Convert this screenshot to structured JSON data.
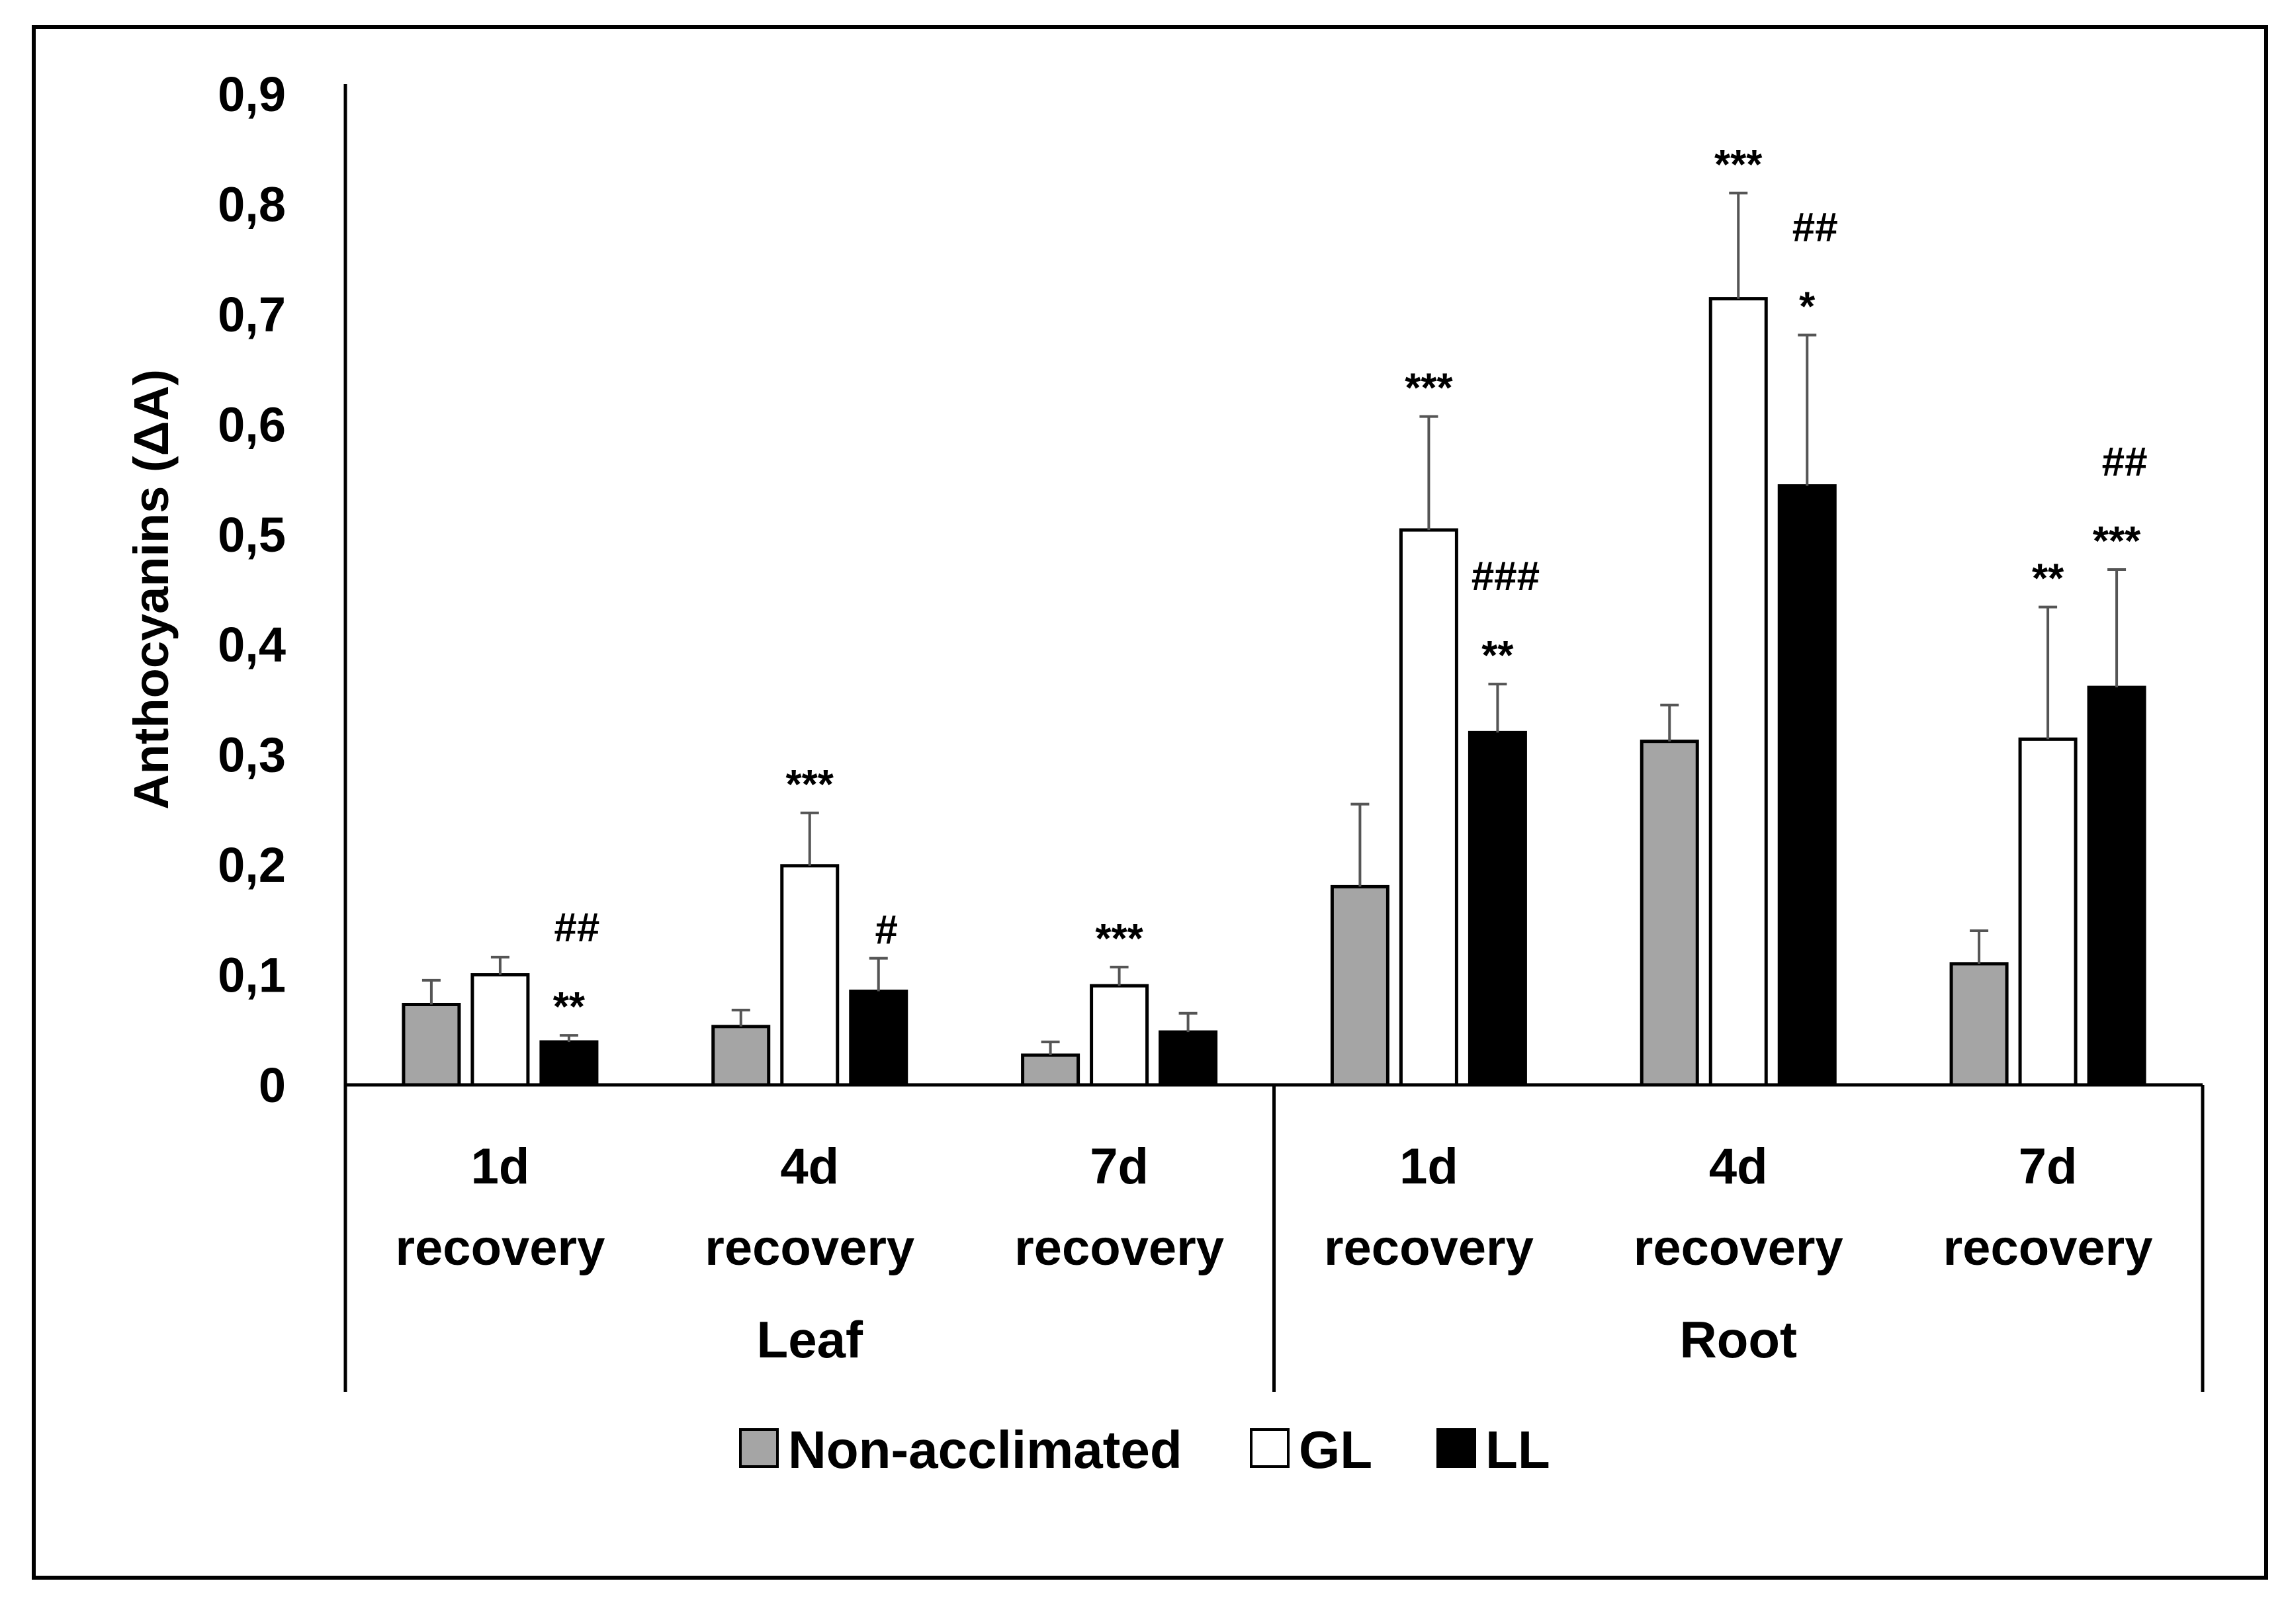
{
  "chart_data": {
    "type": "bar",
    "ylabel": "Anthocyanins (ΔA)",
    "ylim": [
      0,
      0.9
    ],
    "yticks": [
      "0",
      "0,1",
      "0,2",
      "0,3",
      "0,4",
      "0,5",
      "0,6",
      "0,7",
      "0,8",
      "0,9"
    ],
    "groups": [
      {
        "name": "Leaf",
        "categories": [
          [
            "1d",
            "recovery"
          ],
          [
            "4d",
            "recovery"
          ],
          [
            "7d",
            "recovery"
          ]
        ]
      },
      {
        "name": "Root",
        "categories": [
          [
            "1d",
            "recovery"
          ],
          [
            "4d",
            "recovery"
          ],
          [
            "7d",
            "recovery"
          ]
        ]
      }
    ],
    "series": [
      {
        "name": "Non-acclimated",
        "color": "#a5a5a5",
        "values": [
          0.073,
          0.053,
          0.027,
          0.18,
          0.312,
          0.11
        ],
        "errors": [
          0.022,
          0.015,
          0.012,
          0.075,
          0.033,
          0.03
        ],
        "annotations": [
          [],
          [],
          [],
          [],
          [],
          []
        ]
      },
      {
        "name": "GL",
        "color": "#ffffff",
        "values": [
          0.1,
          0.199,
          0.09,
          0.504,
          0.714,
          0.314
        ],
        "errors": [
          0.016,
          0.048,
          0.017,
          0.103,
          0.096,
          0.12
        ],
        "annotations": [
          [],
          [
            "***"
          ],
          [
            "***"
          ],
          [
            "***"
          ],
          [
            "***"
          ],
          [
            "**"
          ]
        ]
      },
      {
        "name": "LL",
        "color": "#000000",
        "values": [
          0.039,
          0.085,
          0.048,
          0.32,
          0.544,
          0.361
        ],
        "errors": [
          0.006,
          0.03,
          0.017,
          0.044,
          0.137,
          0.107
        ],
        "annotations": [
          [
            "##",
            "**"
          ],
          [
            "#"
          ],
          [],
          [
            "###",
            "**"
          ],
          [
            "##",
            "*"
          ],
          [
            "##",
            "***"
          ]
        ]
      }
    ],
    "legend": [
      "Non-acclimated",
      "GL",
      "LL"
    ],
    "legend_position": "bottom"
  }
}
